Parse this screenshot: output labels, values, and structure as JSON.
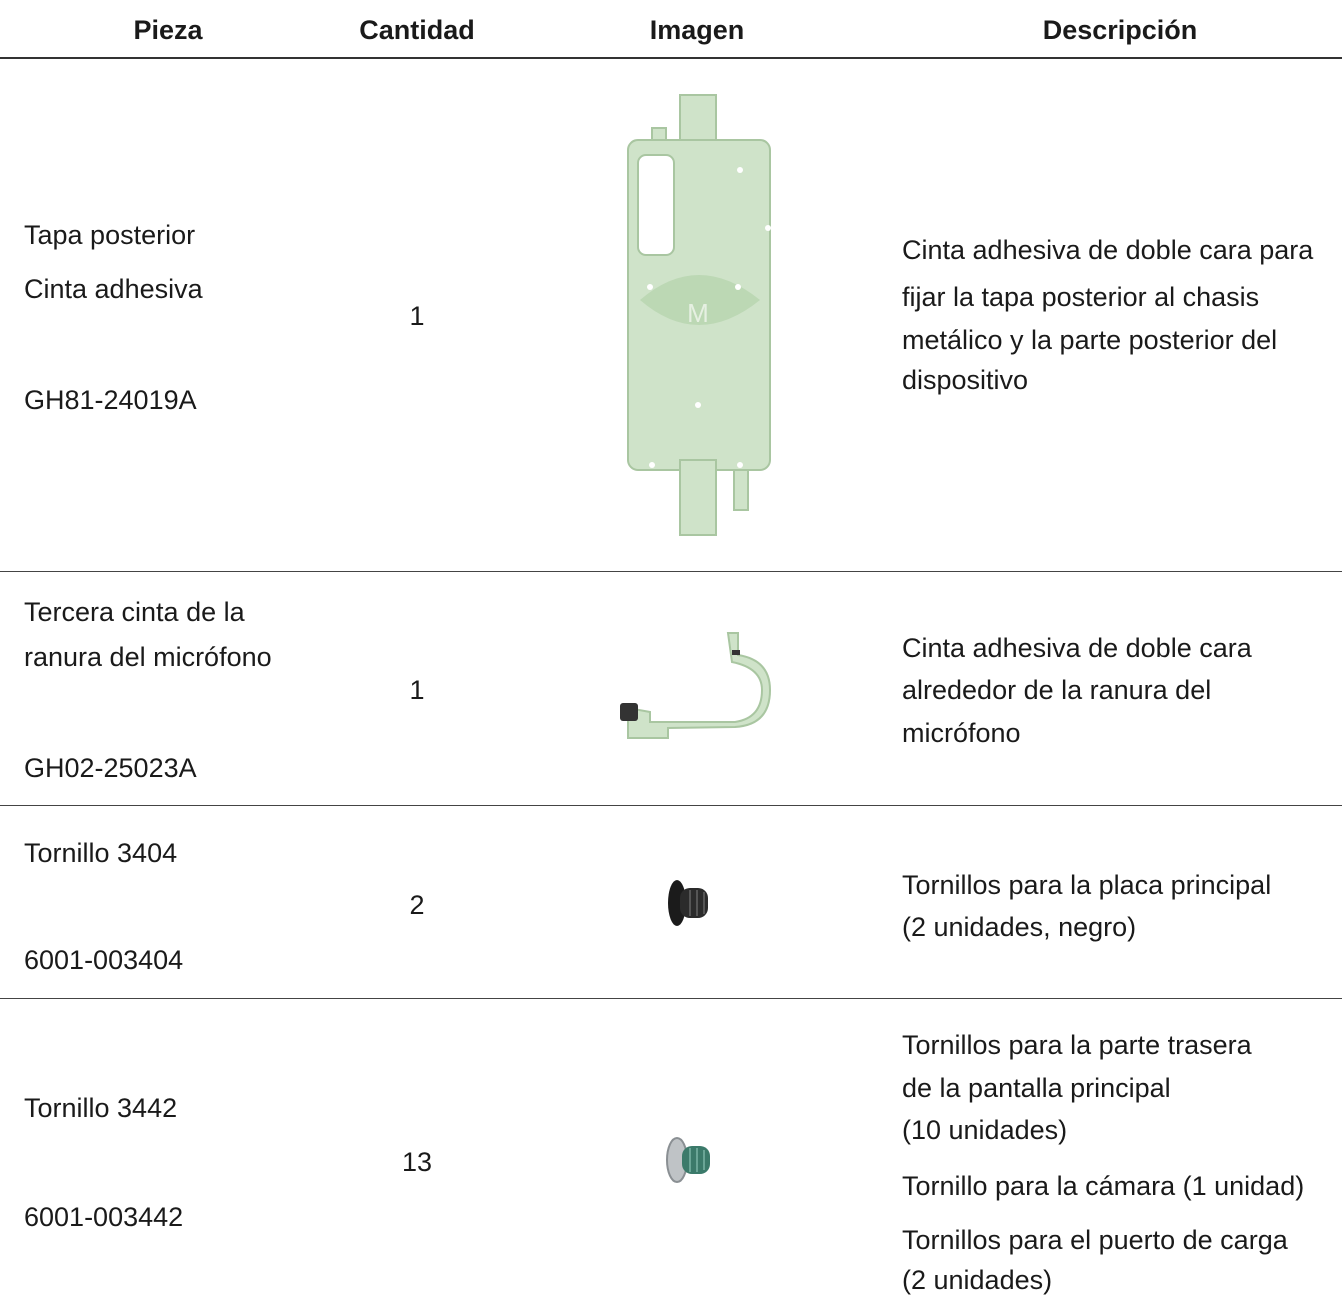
{
  "table": {
    "headers": [
      "Pieza",
      "Cantidad",
      "Imagen",
      "Descripción"
    ],
    "rows": [
      {
        "pieza": {
          "name": [
            "Tapa posterior",
            "Cinta adhesiva"
          ],
          "code": "GH81-24019A"
        },
        "cantidad": 1,
        "descripcion": [
          [
            "Cinta adhesiva de doble cara para",
            "fijar la tapa posterior al chasis",
            "metálico y la parte posterior del",
            "dispositivo"
          ]
        ]
      },
      {
        "pieza": {
          "name": [
            "Tercera cinta de la",
            "ranura del micrófono"
          ],
          "code": "GH02-25023A"
        },
        "cantidad": 1,
        "descripcion": [
          [
            "Cinta adhesiva de doble cara",
            "alrededor de la ranura del",
            "micrófono"
          ]
        ]
      },
      {
        "pieza": {
          "name": [
            "Tornillo 3404"
          ],
          "code": "6001-003404"
        },
        "cantidad": 2,
        "descripcion": [
          [
            "Tornillos para la placa principal",
            "(2 unidades, negro)"
          ]
        ]
      },
      {
        "pieza": {
          "name": [
            "Tornillo 3442"
          ],
          "code": "6001-003442"
        },
        "cantidad": 13,
        "descripcion": [
          [
            "Tornillos para la parte trasera",
            "de la pantalla principal",
            "(10 unidades)"
          ],
          [
            "Tornillo para la cámara (1 unidad)"
          ],
          [
            "Tornillos para el puerto de carga",
            "(2 unidades)"
          ]
        ]
      }
    ]
  }
}
